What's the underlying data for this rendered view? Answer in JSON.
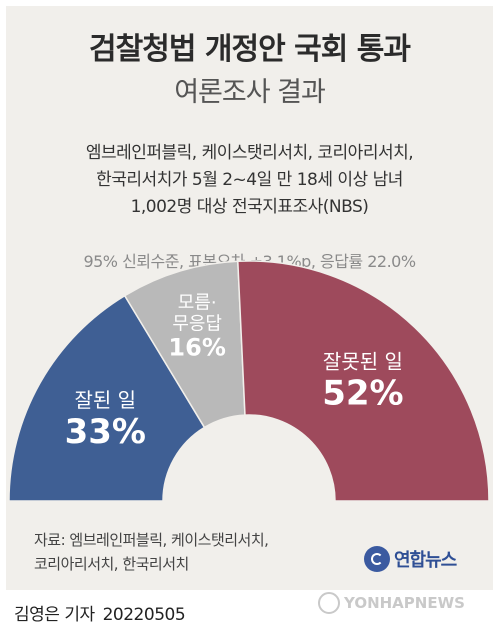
{
  "title": "검찰청법 개정안 국회 통과",
  "subtitle": "여론조사 결과",
  "description": [
    "엠브레인퍼블릭, 케이스탯리서치, 코리아리서치,",
    "한국리서치가 5월 2~4일 만 18세 이상 남녀",
    "1,002명 대상 전국지표조사(NBS)"
  ],
  "stats_line": "95% 신뢰수준, 표본오차 ±3.1%p, 응답률 22.0%",
  "source_lines": [
    "자료: 엠브레인퍼블릭, 케이스탯리서치,",
    "코리아리서치, 한국리서치"
  ],
  "brand": "연합뉴스",
  "reporter": "김영은 기자",
  "date": "20220505",
  "watermark": "YONHAPNEWS",
  "chart_data": {
    "type": "pie",
    "shape": "semicircle donut",
    "slices": [
      {
        "label": "잘된 일",
        "value": 33,
        "value_label": "33%",
        "color": "#3f5f94"
      },
      {
        "label": "모름·\n무응답",
        "value": 16,
        "value_label": "16%",
        "color": "#b9b9b9"
      },
      {
        "label": "잘못된 일",
        "value": 52,
        "value_label": "52%",
        "color": "#9e4a5c"
      }
    ]
  }
}
